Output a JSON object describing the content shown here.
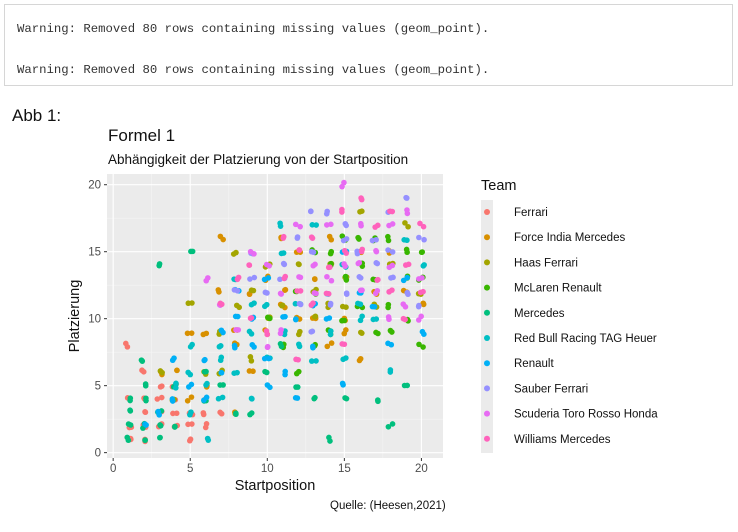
{
  "console": {
    "warnings": [
      "Warning: Removed 80 rows containing missing values (geom_point).",
      "Warning: Removed 80 rows containing missing values (geom_point)."
    ]
  },
  "figure_label": "Abb 1:",
  "source": "Quelle: (Heesen,2021)",
  "chart_data": {
    "type": "scatter",
    "title": "Formel 1",
    "subtitle": "Abhängigkeit der Platzierung von der Startposition",
    "xlabel": "Startposition",
    "ylabel": "Platzierung",
    "xlim": [
      -0.4,
      21.4
    ],
    "ylim": [
      -0.4,
      20.8
    ],
    "x_ticks": [
      0,
      5,
      10,
      15,
      20
    ],
    "y_ticks": [
      0,
      5,
      10,
      15,
      20
    ],
    "x_tick_labels": [
      "0",
      "5",
      "10",
      "15",
      "20"
    ],
    "y_tick_labels": [
      "0",
      "5",
      "10",
      "15",
      "20"
    ],
    "grid": true,
    "legend": {
      "title": "Team",
      "position": "right"
    },
    "series": [
      {
        "name": "Ferrari",
        "color": "#F8766D",
        "points": [
          [
            1,
            8
          ],
          [
            1,
            4
          ],
          [
            2,
            3
          ],
          [
            2,
            2
          ],
          [
            2,
            1
          ],
          [
            3,
            4
          ],
          [
            3,
            3
          ],
          [
            3,
            2
          ],
          [
            4,
            3
          ],
          [
            4,
            2
          ],
          [
            4,
            5
          ],
          [
            5,
            1
          ],
          [
            5,
            3
          ],
          [
            6,
            2
          ],
          [
            6,
            4
          ],
          [
            7,
            3
          ],
          [
            1,
            1
          ],
          [
            2,
            4
          ],
          [
            3,
            5
          ],
          [
            4,
            4
          ],
          [
            5,
            2
          ],
          [
            6,
            3
          ],
          [
            1,
            2
          ],
          [
            2,
            6
          ]
        ]
      },
      {
        "name": "Force India Mercedes",
        "color": "#D89000",
        "points": [
          [
            4,
            6
          ],
          [
            5,
            9
          ],
          [
            6,
            9
          ],
          [
            6,
            5
          ],
          [
            7,
            16
          ],
          [
            7,
            12
          ],
          [
            8,
            9
          ],
          [
            8,
            8
          ],
          [
            8,
            3
          ],
          [
            9,
            6
          ],
          [
            10,
            9
          ],
          [
            11,
            11
          ],
          [
            11,
            12
          ],
          [
            12,
            10
          ],
          [
            12,
            15
          ],
          [
            13,
            10
          ],
          [
            13,
            13
          ],
          [
            14,
            8
          ],
          [
            14,
            16
          ],
          [
            15,
            10
          ],
          [
            15,
            9
          ],
          [
            16,
            7
          ],
          [
            16,
            15
          ],
          [
            17,
            12
          ],
          [
            18,
            15
          ],
          [
            19,
            12
          ],
          [
            20,
            11
          ],
          [
            3,
            6
          ],
          [
            5,
            4
          ],
          [
            9,
            12
          ],
          [
            10,
            13
          ],
          [
            11,
            16
          ]
        ]
      },
      {
        "name": "Haas Ferrari",
        "color": "#A3A500",
        "points": [
          [
            3,
            6
          ],
          [
            4,
            4
          ],
          [
            5,
            11
          ],
          [
            6,
            6
          ],
          [
            7,
            9
          ],
          [
            8,
            11
          ],
          [
            8,
            15
          ],
          [
            9,
            7
          ],
          [
            9,
            12
          ],
          [
            10,
            10
          ],
          [
            11,
            11
          ],
          [
            12,
            14
          ],
          [
            13,
            10
          ],
          [
            13,
            12
          ],
          [
            14,
            11
          ],
          [
            14,
            14
          ],
          [
            15,
            11
          ],
          [
            15,
            13
          ],
          [
            16,
            18
          ],
          [
            16,
            9
          ],
          [
            17,
            16
          ],
          [
            18,
            14
          ],
          [
            19,
            17
          ],
          [
            20,
            12
          ],
          [
            7,
            6
          ],
          [
            10,
            14
          ],
          [
            12,
            9
          ],
          [
            17,
            11
          ]
        ]
      },
      {
        "name": "McLaren Renault",
        "color": "#39B600",
        "points": [
          [
            10,
            10
          ],
          [
            11,
            8
          ],
          [
            12,
            12
          ],
          [
            12,
            6
          ],
          [
            13,
            12
          ],
          [
            13,
            8
          ],
          [
            14,
            15
          ],
          [
            14,
            14
          ],
          [
            15,
            13
          ],
          [
            15,
            16
          ],
          [
            16,
            11
          ],
          [
            16,
            14
          ],
          [
            17,
            16
          ],
          [
            17,
            13
          ],
          [
            18,
            11
          ],
          [
            18,
            9
          ],
          [
            19,
            15
          ],
          [
            19,
            13
          ],
          [
            20,
            8
          ],
          [
            20,
            15
          ],
          [
            15,
            10
          ],
          [
            16,
            16
          ],
          [
            18,
            16
          ],
          [
            19,
            10
          ],
          [
            14,
            9
          ],
          [
            17,
            9
          ],
          [
            20,
            13
          ],
          [
            13,
            15
          ]
        ]
      },
      {
        "name": "Mercedes",
        "color": "#00BF7D",
        "points": [
          [
            1,
            1
          ],
          [
            1,
            2
          ],
          [
            1,
            3
          ],
          [
            2,
            1
          ],
          [
            2,
            4
          ],
          [
            2,
            5
          ],
          [
            2,
            7
          ],
          [
            3,
            1
          ],
          [
            3,
            3
          ],
          [
            3,
            14
          ],
          [
            4,
            2
          ],
          [
            4,
            5
          ],
          [
            5,
            15
          ],
          [
            6,
            6
          ],
          [
            6,
            4
          ],
          [
            7,
            5
          ],
          [
            8,
            3
          ],
          [
            9,
            3
          ],
          [
            10,
            6
          ],
          [
            11,
            8
          ],
          [
            12,
            5
          ],
          [
            13,
            4
          ],
          [
            14,
            1
          ],
          [
            15,
            4
          ],
          [
            17,
            4
          ],
          [
            18,
            2
          ],
          [
            19,
            5
          ],
          [
            1,
            4
          ],
          [
            2,
            2
          ],
          [
            3,
            2
          ]
        ]
      },
      {
        "name": "Red Bull Racing TAG Heuer",
        "color": "#00BFC4",
        "points": [
          [
            4,
            5
          ],
          [
            5,
            8
          ],
          [
            5,
            3
          ],
          [
            6,
            1
          ],
          [
            6,
            5
          ],
          [
            7,
            8
          ],
          [
            7,
            4
          ],
          [
            8,
            6
          ],
          [
            8,
            13
          ],
          [
            9,
            4
          ],
          [
            9,
            11
          ],
          [
            10,
            7
          ],
          [
            10,
            11
          ],
          [
            11,
            17
          ],
          [
            11,
            15
          ],
          [
            12,
            8
          ],
          [
            12,
            11
          ],
          [
            13,
            7
          ],
          [
            13,
            17
          ],
          [
            14,
            9
          ],
          [
            15,
            14
          ],
          [
            15,
            7
          ],
          [
            16,
            10
          ],
          [
            16,
            11
          ],
          [
            17,
            10
          ],
          [
            18,
            6
          ],
          [
            19,
            16
          ],
          [
            20,
            14
          ],
          [
            5,
            6
          ],
          [
            7,
            7
          ],
          [
            9,
            9
          ],
          [
            11,
            9
          ]
        ]
      },
      {
        "name": "Renault",
        "color": "#00B0F6",
        "points": [
          [
            2,
            2
          ],
          [
            3,
            3
          ],
          [
            4,
            4
          ],
          [
            4,
            7
          ],
          [
            5,
            5
          ],
          [
            6,
            4
          ],
          [
            7,
            6
          ],
          [
            7,
            9
          ],
          [
            8,
            10
          ],
          [
            8,
            12
          ],
          [
            9,
            8
          ],
          [
            9,
            10
          ],
          [
            10,
            13
          ],
          [
            10,
            7
          ],
          [
            11,
            6
          ],
          [
            11,
            10
          ],
          [
            12,
            4
          ],
          [
            12,
            10
          ],
          [
            13,
            8
          ],
          [
            13,
            11
          ],
          [
            14,
            10
          ],
          [
            14,
            12
          ],
          [
            15,
            5
          ],
          [
            15,
            15
          ],
          [
            16,
            12
          ],
          [
            17,
            11
          ],
          [
            18,
            8
          ],
          [
            19,
            13
          ],
          [
            20,
            9
          ],
          [
            6,
            7
          ],
          [
            8,
            8
          ],
          [
            10,
            5
          ]
        ]
      },
      {
        "name": "Sauber Ferrari",
        "color": "#9590FF",
        "points": [
          [
            8,
            12
          ],
          [
            9,
            13
          ],
          [
            10,
            12
          ],
          [
            11,
            14
          ],
          [
            11,
            13
          ],
          [
            12,
            11
          ],
          [
            12,
            16
          ],
          [
            13,
            18
          ],
          [
            13,
            15
          ],
          [
            14,
            18
          ],
          [
            14,
            11
          ],
          [
            15,
            17
          ],
          [
            15,
            16
          ],
          [
            16,
            15
          ],
          [
            17,
            16
          ],
          [
            17,
            14
          ],
          [
            18,
            13
          ],
          [
            18,
            18
          ],
          [
            19,
            19
          ],
          [
            19,
            12
          ],
          [
            20,
            16
          ],
          [
            20,
            11
          ],
          [
            16,
            13
          ],
          [
            18,
            15
          ],
          [
            9,
            15
          ],
          [
            13,
            9
          ],
          [
            15,
            12
          ]
        ]
      },
      {
        "name": "Scuderia Toro Rosso Honda",
        "color": "#E76BF3",
        "points": [
          [
            6,
            13
          ],
          [
            7,
            11
          ],
          [
            8,
            9
          ],
          [
            9,
            15
          ],
          [
            10,
            8
          ],
          [
            10,
            14
          ],
          [
            11,
            12
          ],
          [
            12,
            13
          ],
          [
            12,
            17
          ],
          [
            13,
            14
          ],
          [
            14,
            13
          ],
          [
            14,
            17
          ],
          [
            15,
            14
          ],
          [
            15,
            20
          ],
          [
            16,
            12
          ],
          [
            16,
            17
          ],
          [
            17,
            15
          ],
          [
            17,
            12
          ],
          [
            18,
            10
          ],
          [
            18,
            17
          ],
          [
            19,
            18
          ],
          [
            19,
            11
          ],
          [
            20,
            10
          ],
          [
            20,
            13
          ],
          [
            11,
            9
          ],
          [
            13,
            12
          ],
          [
            16,
            14
          ],
          [
            18,
            14
          ]
        ]
      },
      {
        "name": "Williams Mercedes",
        "color": "#FF62BC",
        "points": [
          [
            7,
            11
          ],
          [
            8,
            13
          ],
          [
            9,
            14
          ],
          [
            10,
            9
          ],
          [
            11,
            13
          ],
          [
            11,
            16
          ],
          [
            12,
            12
          ],
          [
            12,
            15
          ],
          [
            13,
            11
          ],
          [
            13,
            16
          ],
          [
            14,
            14
          ],
          [
            14,
            12
          ],
          [
            15,
            15
          ],
          [
            15,
            18
          ],
          [
            16,
            15
          ],
          [
            16,
            19
          ],
          [
            17,
            13
          ],
          [
            17,
            17
          ],
          [
            18,
            12
          ],
          [
            18,
            18
          ],
          [
            19,
            14
          ],
          [
            19,
            10
          ],
          [
            20,
            12
          ],
          [
            20,
            17
          ],
          [
            9,
            10
          ],
          [
            12,
            7
          ],
          [
            15,
            8
          ]
        ]
      }
    ]
  }
}
